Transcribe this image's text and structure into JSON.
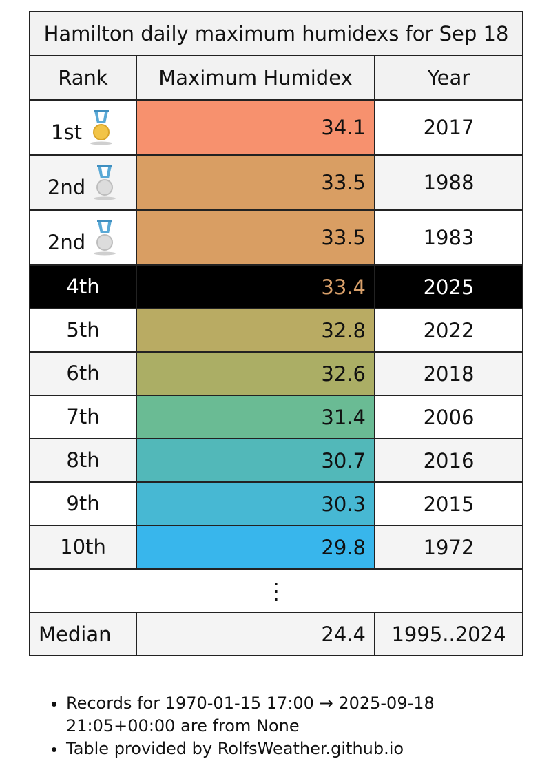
{
  "table": {
    "title": "Hamilton daily maximum humidexs for Sep 18",
    "headers": {
      "rank": "Rank",
      "value": "Maximum Humidex",
      "year": "Year"
    },
    "rows": [
      {
        "rank": "1st",
        "value": "34.1",
        "year": "2017",
        "medal": "gold-medal-icon",
        "color": "#f7916e"
      },
      {
        "rank": "2nd",
        "value": "33.5",
        "year": "1988",
        "medal": "silver-medal-icon",
        "color": "#d99e63"
      },
      {
        "rank": "2nd",
        "value": "33.5",
        "year": "1983",
        "medal": "silver-medal-icon",
        "color": "#d99e63"
      },
      {
        "rank": "4th",
        "value": "33.4",
        "year": "2025",
        "medal": "",
        "color": "#000000",
        "current": true
      },
      {
        "rank": "5th",
        "value": "32.8",
        "year": "2022",
        "medal": "",
        "color": "#b9ab63"
      },
      {
        "rank": "6th",
        "value": "32.6",
        "year": "2018",
        "medal": "",
        "color": "#abae65"
      },
      {
        "rank": "7th",
        "value": "31.4",
        "year": "2006",
        "medal": "",
        "color": "#6abb94"
      },
      {
        "rank": "8th",
        "value": "30.7",
        "year": "2016",
        "medal": "",
        "color": "#52b8b9"
      },
      {
        "rank": "9th",
        "value": "30.3",
        "year": "2015",
        "medal": "",
        "color": "#47b8d3"
      },
      {
        "rank": "10th",
        "value": "29.8",
        "year": "1972",
        "medal": "",
        "color": "#38b6ec"
      }
    ],
    "ellipsis": "⋮",
    "median": {
      "label": "Median",
      "value": "24.4",
      "years": "1995..2024"
    }
  },
  "notes": [
    "Records for 1970-01-15 17:00 → 2025-09-18 21:05+00:00 are from None",
    "Table provided by RolfsWeather.github.io"
  ]
}
